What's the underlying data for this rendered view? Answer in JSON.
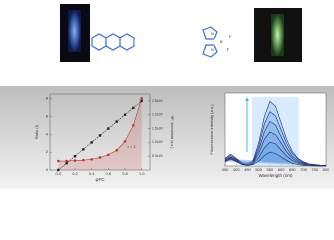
{
  "structure_labels": [
    "N",
    "N",
    "B",
    "F",
    "F"
  ],
  "chart_data": [
    {
      "type": "line",
      "xlabel": "φFC",
      "ylabel": "Ratio (I)",
      "y2label": "ΦF, normalized (a.u.)",
      "annotation": "r = 1",
      "x": [
        0,
        0.1,
        0.2,
        0.3,
        0.4,
        0.5,
        0.6,
        0.7,
        0.8,
        0.9,
        1.0
      ],
      "xlim": [
        -0.1,
        1.1
      ],
      "xticks": [
        {
          "value": 0,
          "label": "0.0"
        },
        {
          "value": 0.2,
          "label": "0.2"
        },
        {
          "value": 0.4,
          "label": "0.4"
        },
        {
          "value": 0.6,
          "label": "0.6"
        },
        {
          "value": 0.8,
          "label": "0.8"
        },
        {
          "value": 1,
          "label": "1.0"
        }
      ],
      "ylim": [
        0,
        8.5
      ],
      "yticks": [
        0,
        2,
        4,
        6,
        8
      ],
      "y2lim": [
        0,
        27500
      ],
      "y2ticks": [
        {
          "value": 5000,
          "label": "5.0x10³"
        },
        {
          "value": 10000,
          "label": "1.0x10⁴"
        },
        {
          "value": 15000,
          "label": "1.5x10⁴"
        },
        {
          "value": 20000,
          "label": "2.0x10⁴"
        },
        {
          "value": 25000,
          "label": "2.5x10⁴"
        }
      ],
      "series": [
        {
          "color": "#c0392b",
          "values": [
            1,
            1,
            1.05,
            1.1,
            1.2,
            1.4,
            1.7,
            2.2,
            3.2,
            5,
            8
          ]
        },
        {
          "color": "#222222",
          "axis": "y2",
          "values": [
            0,
            2500,
            5000,
            7500,
            10000,
            12500,
            15000,
            17500,
            20000,
            22500,
            25000
          ]
        }
      ]
    },
    {
      "type": "area",
      "xlabel": "Wavelength (nm)",
      "ylabel": "Fluorescence intensity (a.u.)",
      "x": [
        350,
        375,
        400,
        425,
        450,
        475,
        500,
        525,
        550,
        575,
        600,
        625,
        650,
        675,
        700,
        725,
        750,
        775,
        800
      ],
      "xlim": [
        350,
        800
      ],
      "xticks": [
        350,
        400,
        450,
        500,
        550,
        600,
        650,
        700,
        750,
        800
      ],
      "ylim": [
        0,
        1.05
      ],
      "series": [
        {
          "color": "#1b2f7a",
          "values": [
            0.11,
            0.17,
            0.11,
            0.05,
            0.03,
            0.08,
            0.33,
            0.71,
            0.93,
            0.86,
            0.62,
            0.38,
            0.21,
            0.11,
            0.06,
            0.03,
            0.02,
            0.01,
            0.01
          ]
        },
        {
          "color": "#1b2f7a",
          "values": [
            0.1,
            0.15,
            0.1,
            0.04,
            0.02,
            0.06,
            0.28,
            0.6,
            0.78,
            0.72,
            0.52,
            0.32,
            0.18,
            0.1,
            0.05,
            0.02,
            0.02,
            0.01,
            0.01
          ]
        },
        {
          "color": "#1b2f7a",
          "values": [
            0.09,
            0.13,
            0.09,
            0.04,
            0.02,
            0.05,
            0.23,
            0.49,
            0.64,
            0.59,
            0.42,
            0.26,
            0.14,
            0.08,
            0.04,
            0.02,
            0.01,
            0.01,
            0.01
          ]
        },
        {
          "color": "#1b2f7a",
          "values": [
            0.08,
            0.12,
            0.08,
            0.03,
            0.02,
            0.04,
            0.18,
            0.38,
            0.49,
            0.45,
            0.33,
            0.2,
            0.11,
            0.06,
            0.03,
            0.02,
            0.01,
            0.01,
            0
          ]
        },
        {
          "color": "#1b2f7a",
          "values": [
            0.07,
            0.11,
            0.07,
            0.03,
            0.01,
            0.03,
            0.12,
            0.26,
            0.34,
            0.32,
            0.23,
            0.14,
            0.08,
            0.04,
            0.02,
            0.01,
            0.01,
            0,
            0
          ]
        },
        {
          "color": "#1b2f7a",
          "values": [
            0.06,
            0.1,
            0.06,
            0.02,
            0.01,
            0.02,
            0.07,
            0.15,
            0.2,
            0.18,
            0.13,
            0.08,
            0.04,
            0.02,
            0.01,
            0.01,
            0,
            0,
            0
          ]
        }
      ]
    }
  ]
}
